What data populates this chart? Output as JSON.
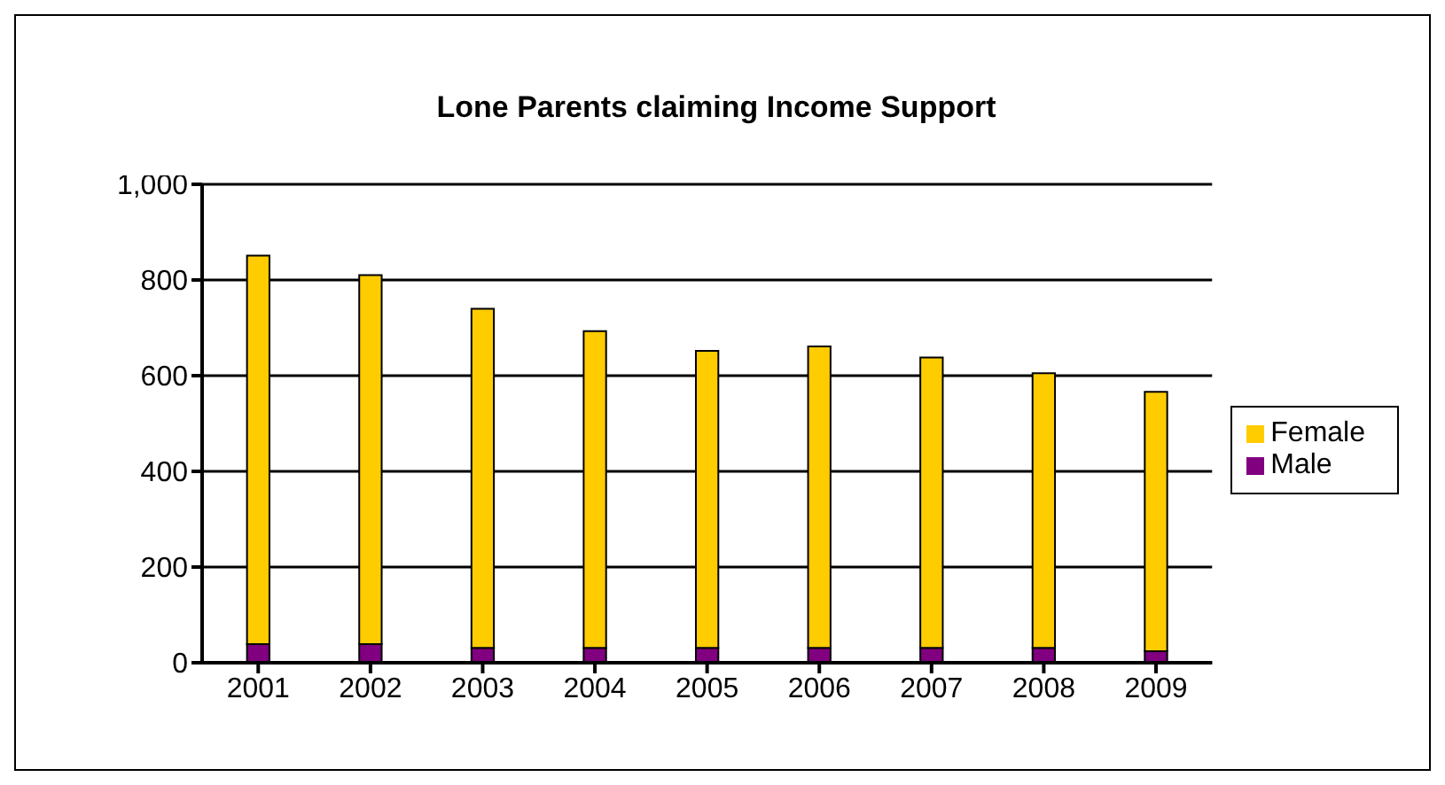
{
  "chart_data": {
    "type": "bar",
    "title": "Lone Parents claiming Income Support",
    "categories": [
      "2001",
      "2002",
      "2003",
      "2004",
      "2005",
      "2006",
      "2007",
      "2008",
      "2009"
    ],
    "stacked": true,
    "series": [
      {
        "name": "Male",
        "color": "#800080",
        "values": [
          39,
          39,
          31,
          31,
          31,
          31,
          31,
          31,
          24
        ]
      },
      {
        "name": "Female",
        "color": "#ffcc00",
        "values": [
          812,
          771,
          709,
          662,
          621,
          630,
          607,
          574,
          542
        ]
      }
    ],
    "ylim": [
      0,
      1000
    ],
    "yticks": [
      {
        "value": 0,
        "label": "0"
      },
      {
        "value": 200,
        "label": "200"
      },
      {
        "value": 400,
        "label": "400"
      },
      {
        "value": 600,
        "label": "600"
      },
      {
        "value": 800,
        "label": "800"
      },
      {
        "value": 1000,
        "label": "1,000"
      }
    ],
    "grid": "y",
    "legend": "right"
  }
}
